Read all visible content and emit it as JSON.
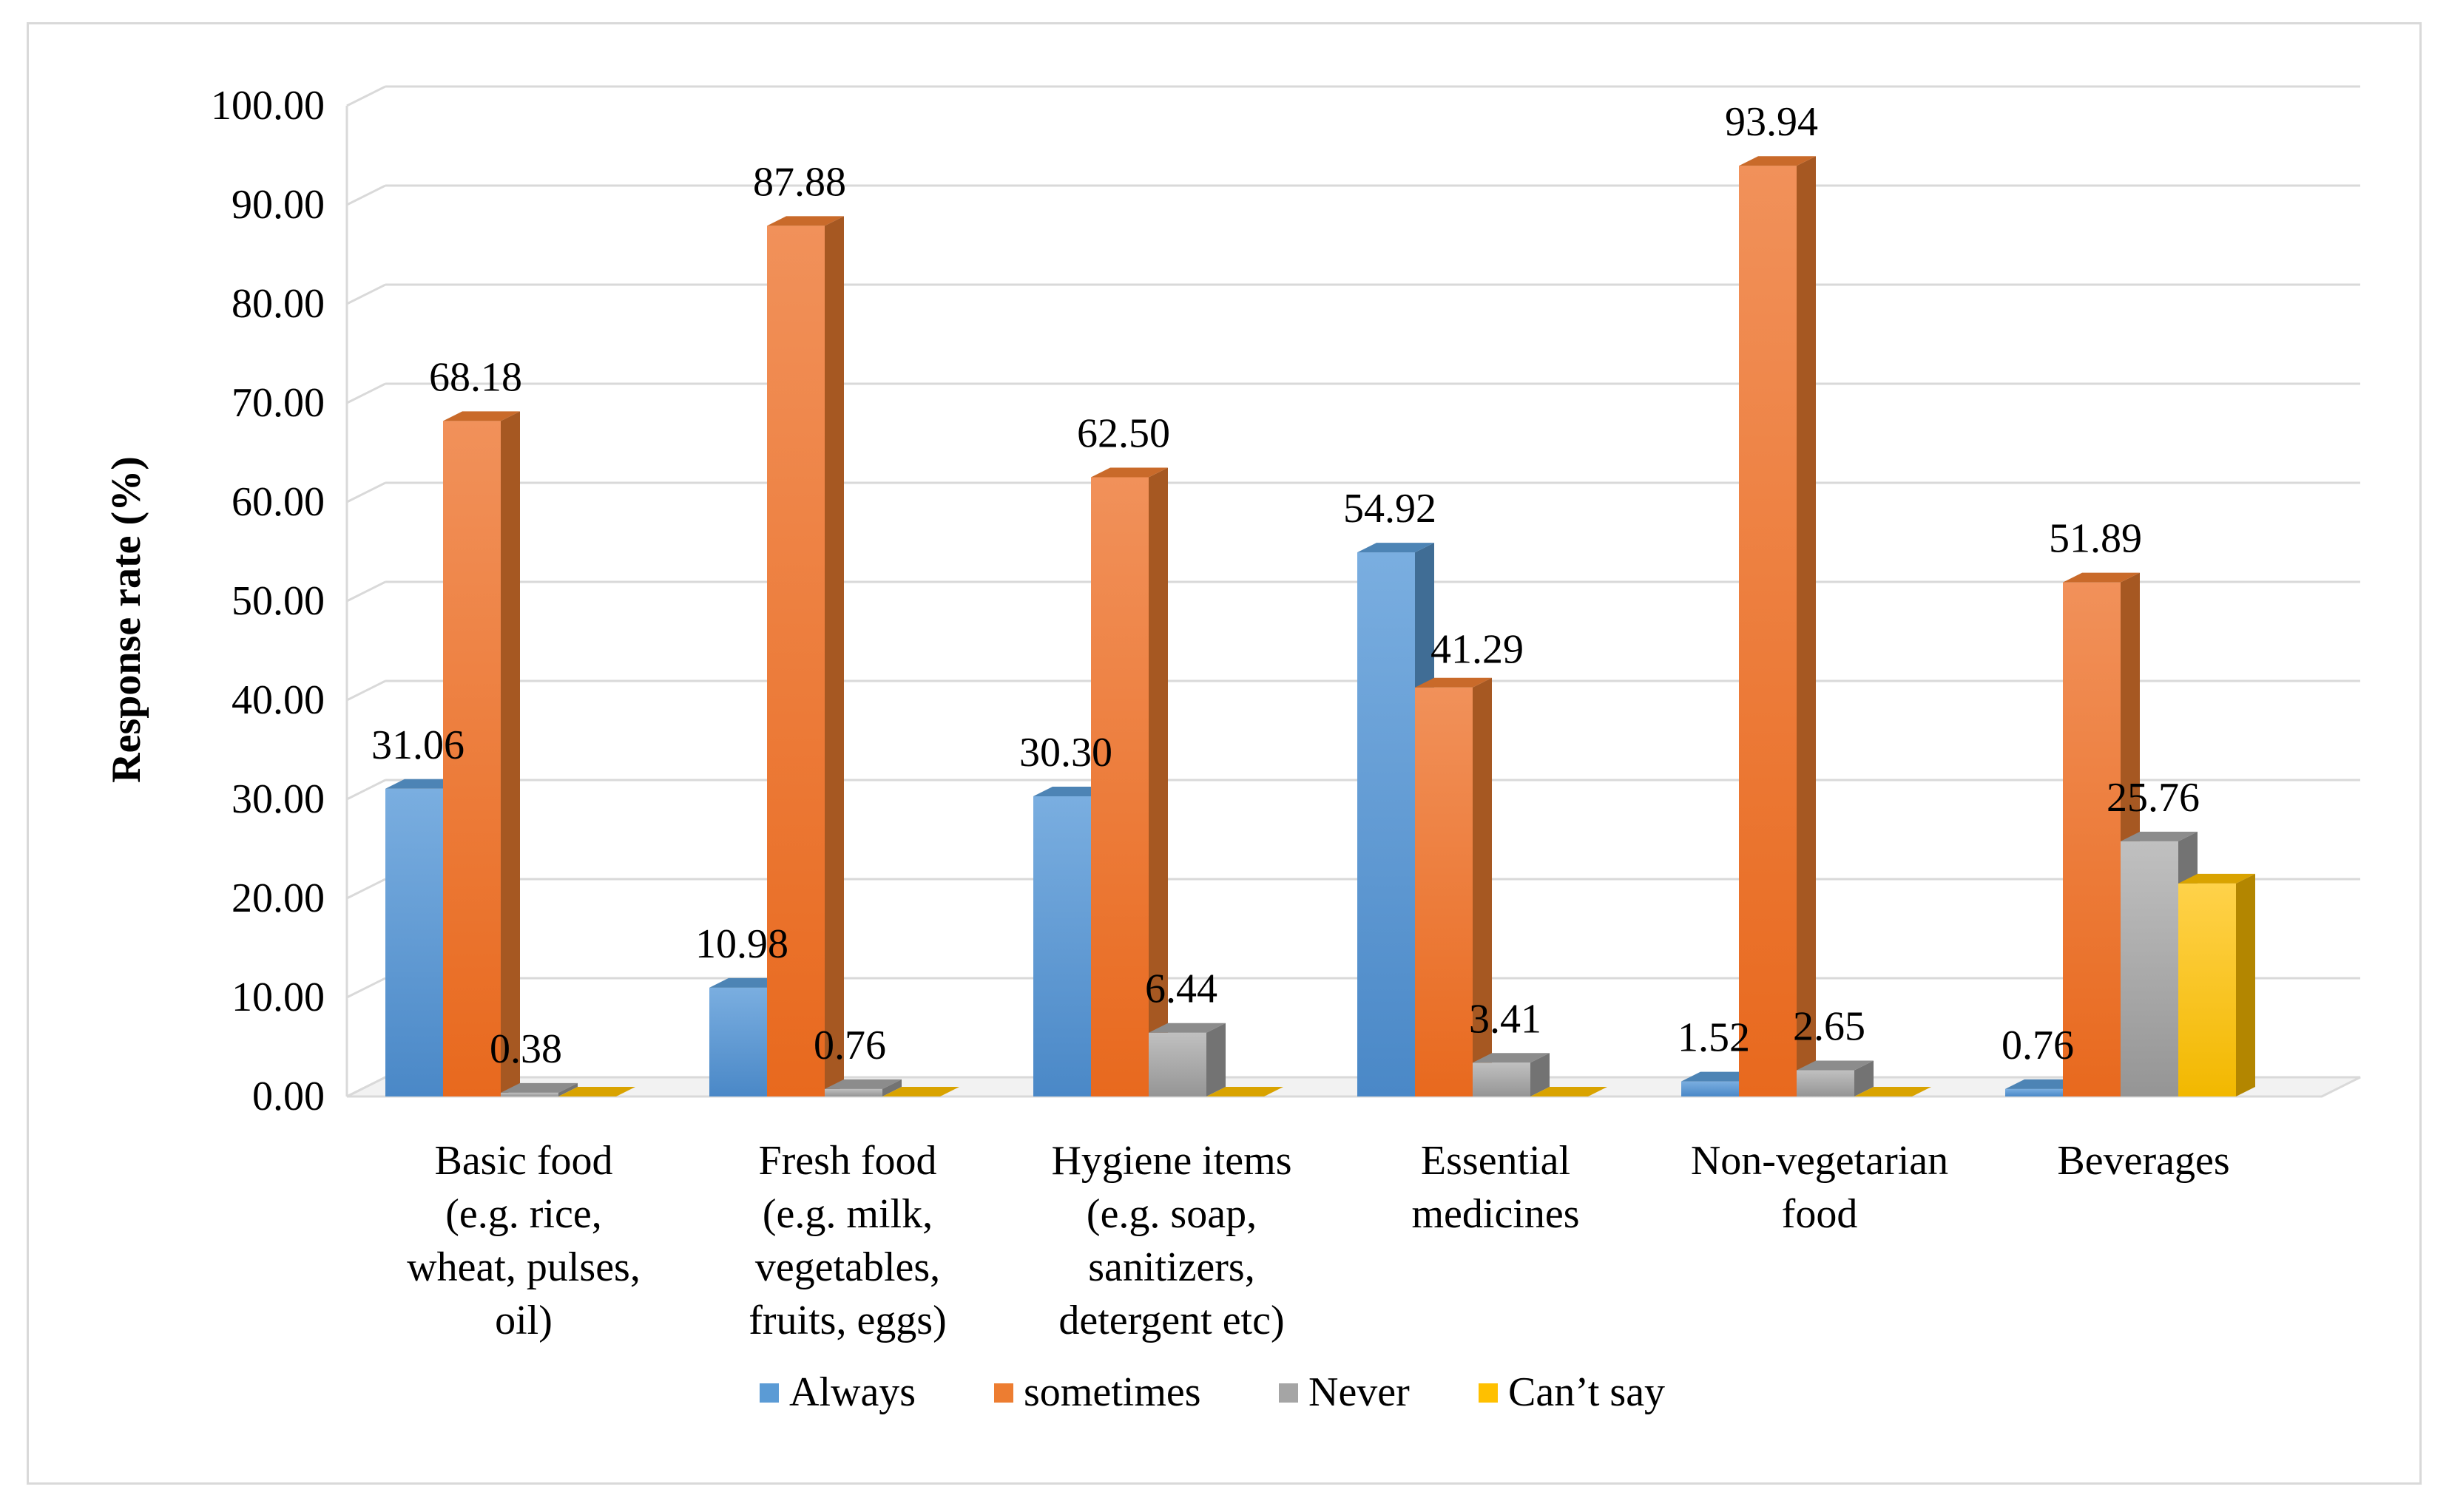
{
  "chart_data": {
    "type": "bar",
    "style": "3d-clustered-column",
    "title": "",
    "xlabel": "",
    "ylabel": "Response rate (%)",
    "ylim": [
      0,
      100
    ],
    "ytick_step": 10,
    "yticks": [
      "0.00",
      "10.00",
      "20.00",
      "30.00",
      "40.00",
      "50.00",
      "60.00",
      "70.00",
      "80.00",
      "90.00",
      "100.00"
    ],
    "grid": true,
    "legend_position": "bottom",
    "categories": [
      [
        "Basic food",
        "(e.g. rice,",
        "wheat, pulses,",
        "oil)"
      ],
      [
        "Fresh food",
        "(e.g. milk,",
        "vegetables,",
        "fruits, eggs)"
      ],
      [
        "Hygiene items",
        "(e.g. soap,",
        "sanitizers,",
        "detergent etc)"
      ],
      [
        "Essential",
        "medicines"
      ],
      [
        "Non-vegetarian",
        "food"
      ],
      [
        "Beverages"
      ]
    ],
    "series": [
      {
        "name": "Always",
        "color": "#5b9bd5",
        "values": [
          31.06,
          10.98,
          30.3,
          54.92,
          1.52,
          0.76
        ],
        "labels": [
          "31.06",
          "10.98",
          "30.30",
          "54.92",
          "1.52",
          "0.76"
        ]
      },
      {
        "name": "sometimes",
        "color": "#ed7d31",
        "values": [
          68.18,
          87.88,
          62.5,
          41.29,
          93.94,
          51.89
        ],
        "labels": [
          "68.18",
          "87.88",
          "62.50",
          "41.29",
          "93.94",
          "51.89"
        ]
      },
      {
        "name": "Never",
        "color": "#a5a5a5",
        "values": [
          0.38,
          0.76,
          6.44,
          3.41,
          2.65,
          25.76
        ],
        "labels": [
          "0.38",
          "0.76",
          "6.44",
          "3.41",
          "2.65",
          "25.76"
        ]
      },
      {
        "name": "Can’t say",
        "color": "#ffc000",
        "values": [
          0,
          0,
          0,
          0,
          0,
          21.5
        ],
        "labels": [
          "",
          "",
          "",
          "",
          "",
          ""
        ]
      }
    ]
  }
}
